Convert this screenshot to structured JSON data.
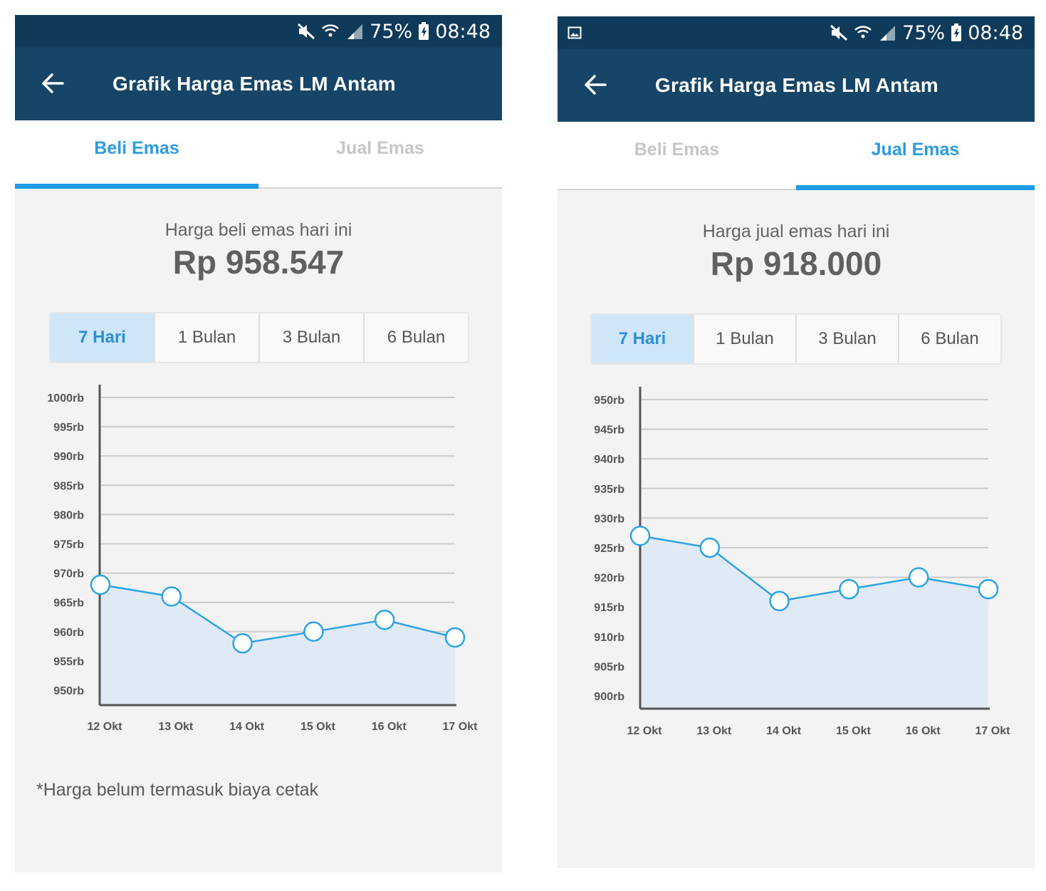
{
  "status_bar": {
    "battery": "75%",
    "time": "08:48"
  },
  "app_bar": {
    "title": "Grafik Harga Emas LM Antam"
  },
  "tabs": [
    {
      "label": "Beli Emas"
    },
    {
      "label": "Jual Emas"
    }
  ],
  "ranges": [
    "7 Hari",
    "1 Bulan",
    "3 Bulan",
    "6 Bulan"
  ],
  "colors": {
    "primary_dark": "#0f3a59",
    "primary": "#164567",
    "accent": "#1e9be6",
    "line": "#2ea3e3"
  },
  "icons": [
    "mute-icon",
    "wifi-icon",
    "signal-icon",
    "battery-icon",
    "image-notification-icon",
    "back-arrow-icon"
  ],
  "screens": [
    {
      "active_tab": 0,
      "active_range": 0,
      "price_label": "Harga beli emas hari ini",
      "price_value": "Rp 958.547",
      "footnote": "*Harga belum termasuk biaya cetak"
    },
    {
      "active_tab": 1,
      "active_range": 0,
      "price_label": "Harga jual emas hari ini",
      "price_value": "Rp 918.000",
      "footnote": ""
    }
  ],
  "chart_data": [
    {
      "type": "area",
      "x": [
        "12 Okt",
        "13 Okt",
        "14 Okt",
        "15 Okt",
        "16 Okt",
        "17 Okt"
      ],
      "yticks": [
        "1000rb",
        "995rb",
        "990rb",
        "985rb",
        "980rb",
        "975rb",
        "970rb",
        "965rb",
        "960rb",
        "955rb",
        "950rb"
      ],
      "ylim": [
        950,
        1000
      ],
      "series": [
        {
          "values": [
            968,
            966,
            958,
            960,
            962,
            959
          ]
        }
      ],
      "grid": true
    },
    {
      "type": "area",
      "x": [
        "12 Okt",
        "13 Okt",
        "14 Okt",
        "15 Okt",
        "16 Okt",
        "17 Okt"
      ],
      "yticks": [
        "950rb",
        "945rb",
        "940rb",
        "935rb",
        "930rb",
        "925rb",
        "920rb",
        "915rb",
        "910rb",
        "905rb",
        "900rb"
      ],
      "ylim": [
        900,
        950
      ],
      "series": [
        {
          "values": [
            927,
            925,
            916,
            918,
            920,
            918
          ]
        }
      ],
      "grid": true
    }
  ]
}
